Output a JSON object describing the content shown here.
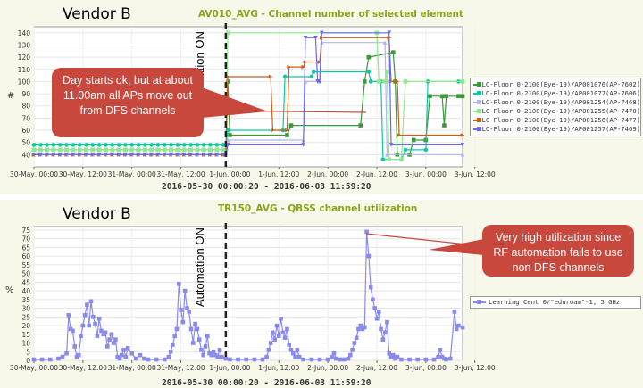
{
  "chart_data": [
    {
      "type": "line",
      "vendor_label": "Vendor B",
      "title": "AV010_AVG - Channel number of selected element",
      "ylabel": "#",
      "ylim": [
        30,
        145
      ],
      "yticks": [
        40,
        50,
        60,
        70,
        80,
        90,
        100,
        110,
        120,
        130,
        140
      ],
      "xticks": [
        "30-May, 00:00",
        "30-May, 12:00",
        "31-May, 00:00",
        "31-May, 12:00",
        "1-Jun, 00:00",
        "1-Jun, 12:00",
        "2-Jun, 00:00",
        "2-Jun, 12:00",
        "3-Jun, 00:00",
        "3-Jun, 12:00"
      ],
      "xlim_hours": [
        0,
        105
      ],
      "time_range": "2016-05-30 00:00:20 - 2016-06-03 11:59:20",
      "annotation_line_label": "Automation ON",
      "annotation_line_x_hours": 47,
      "callout": "Day starts ok, but at about 11.00am all APs move out from DFS channels",
      "series": [
        {
          "name": "LC-Floor 0-2100",
          "ap": "(Eye-19)/AP001076(AP-7602)",
          "color": "#3a9a3a",
          "marker": "square",
          "points": [
            [
              0,
              44
            ],
            [
              47,
              44
            ],
            [
              47.5,
              100
            ],
            [
              48,
              56
            ],
            [
              62,
              56
            ],
            [
              63,
              64
            ],
            [
              80,
              64
            ],
            [
              81,
              100
            ],
            [
              82,
              120
            ],
            [
              88,
              124
            ],
            [
              88.5,
              100
            ],
            [
              89,
              40
            ],
            [
              92,
              40
            ],
            [
              93,
              52
            ],
            [
              96,
              52
            ],
            [
              97,
              88
            ],
            [
              100,
              88
            ],
            [
              100.5,
              64
            ],
            [
              101,
              88
            ],
            [
              104,
              88
            ],
            [
              105,
              88
            ]
          ]
        },
        {
          "name": "LC-Floor 0-2100",
          "ap": "(Eye-19)/AP001077(AP-7606)",
          "color": "#10c8a0",
          "marker": "circle",
          "points": [
            [
              0,
              48
            ],
            [
              47,
              48
            ],
            [
              47.5,
              60
            ],
            [
              61,
              60
            ],
            [
              61.5,
              104
            ],
            [
              68,
              104
            ],
            [
              68.5,
              108
            ],
            [
              82,
              108
            ],
            [
              82.5,
              100
            ],
            [
              85,
              100
            ],
            [
              85.5,
              36
            ],
            [
              90,
              36
            ],
            [
              91,
              44
            ],
            [
              96,
              44
            ],
            [
              96.5,
              100
            ],
            [
              104,
              100
            ],
            [
              105,
              100
            ]
          ]
        },
        {
          "name": "LC-Floor 0-2100",
          "ap": "(Eye-19)/AP001254(AP-7468)",
          "color": "#b4b4e8",
          "marker": "triangle-up",
          "points": [
            [
              0,
              40
            ],
            [
              47,
              40
            ],
            [
              47.5,
              52
            ],
            [
              66,
              52
            ],
            [
              66.5,
              100
            ],
            [
              70,
              100
            ],
            [
              70.5,
              132
            ],
            [
              86,
              132
            ],
            [
              86.5,
              40
            ],
            [
              105,
              40
            ]
          ]
        },
        {
          "name": "LC-Floor 0-2100",
          "ap": "(Eye-19)/AP001255(AP-7470)",
          "color": "#90e890",
          "marker": "square",
          "points": [
            [
              0,
              44
            ],
            [
              47,
              44
            ],
            [
              47.5,
              140
            ],
            [
              84,
              140
            ],
            [
              84.5,
              100
            ],
            [
              86,
              100
            ],
            [
              86.5,
              108
            ],
            [
              87,
              36
            ],
            [
              90,
              36
            ],
            [
              91,
              100
            ],
            [
              105,
              100
            ]
          ]
        },
        {
          "name": "LC-Floor 0-2100",
          "ap": "(Eye-19)/AP001256(AP-7477)",
          "color": "#c86018",
          "marker": "triangle-right",
          "points": [
            [
              0,
              40
            ],
            [
              47,
              40
            ],
            [
              47.5,
              104
            ],
            [
              58,
              104
            ],
            [
              58.5,
              60
            ],
            [
              62,
              60
            ],
            [
              62.5,
              112
            ],
            [
              66,
              112
            ],
            [
              66.5,
              116
            ],
            [
              70,
              116
            ],
            [
              70.5,
              136
            ],
            [
              87,
              136
            ],
            [
              87.5,
              100
            ],
            [
              89,
              100
            ],
            [
              89.5,
              56
            ],
            [
              105,
              56
            ]
          ]
        },
        {
          "name": "LC-Floor 0-2100",
          "ap": "(Eye-19)/AP001257(AP-7469)",
          "color": "#6a6ae8",
          "marker": "triangle-down",
          "points": [
            [
              0,
              40
            ],
            [
              47,
              40
            ],
            [
              47.5,
              48
            ],
            [
              66,
              48
            ],
            [
              66.5,
              136
            ],
            [
              69,
              136
            ],
            [
              69.5,
              100
            ],
            [
              70,
              100
            ],
            [
              70.5,
              140
            ],
            [
              87,
              140
            ],
            [
              87.5,
              48
            ],
            [
              105,
              48
            ]
          ]
        }
      ]
    },
    {
      "type": "line",
      "vendor_label": "Vendor B",
      "title": "TR150_AVG - QBSS channel utilization",
      "ylabel": "%",
      "ylim": [
        0,
        77
      ],
      "yticks": [
        0,
        5,
        10,
        15,
        20,
        25,
        30,
        35,
        40,
        45,
        50,
        55,
        60,
        65,
        70,
        75
      ],
      "xticks": [
        "30-May, 00:00",
        "30-May, 12:00",
        "31-May, 00:00",
        "31-May, 12:00",
        "1-Jun, 00:00",
        "1-Jun, 12:00",
        "2-Jun, 00:00",
        "2-Jun, 12:00",
        "3-Jun, 00:00",
        "3-Jun, 12:00"
      ],
      "xlim_hours": [
        0,
        105
      ],
      "time_range": "2016-05-30 00:00:20 - 2016-06-03 11:59:20",
      "annotation_line_label": "Automation ON",
      "annotation_line_x_hours": 47,
      "callout": "Very high utilization since RF automation fails to use non DFS channels",
      "series": [
        {
          "name": "Learning Cent 0/\"eduroam\"-1, 5 GHz",
          "color": "#8a8aea",
          "marker": "square",
          "points": [
            [
              0,
              0.5
            ],
            [
              2,
              0.5
            ],
            [
              4,
              0.5
            ],
            [
              6,
              1
            ],
            [
              7,
              2
            ],
            [
              8,
              4
            ],
            [
              8.5,
              26
            ],
            [
              9,
              18
            ],
            [
              9.5,
              17
            ],
            [
              10,
              8
            ],
            [
              10.5,
              2
            ],
            [
              11,
              3
            ],
            [
              11.5,
              14
            ],
            [
              12,
              20
            ],
            [
              12.5,
              26
            ],
            [
              13,
              32
            ],
            [
              13.5,
              20
            ],
            [
              14,
              34
            ],
            [
              14.5,
              25
            ],
            [
              15,
              21
            ],
            [
              15.5,
              14
            ],
            [
              16,
              24
            ],
            [
              16.5,
              17
            ],
            [
              17,
              15
            ],
            [
              17.5,
              16
            ],
            [
              18,
              8
            ],
            [
              18.5,
              12
            ],
            [
              19,
              15
            ],
            [
              19.5,
              10
            ],
            [
              20,
              12
            ],
            [
              20.5,
              2
            ],
            [
              21,
              1
            ],
            [
              21.5,
              3
            ],
            [
              22,
              6
            ],
            [
              22.5,
              2
            ],
            [
              23,
              7
            ],
            [
              24,
              4
            ],
            [
              25,
              1
            ],
            [
              26,
              3
            ],
            [
              27,
              1
            ],
            [
              28,
              0.5
            ],
            [
              30,
              0.5
            ],
            [
              32,
              0.5
            ],
            [
              33,
              2
            ],
            [
              33.5,
              5
            ],
            [
              34,
              9
            ],
            [
              34.5,
              14
            ],
            [
              35,
              18
            ],
            [
              35.5,
              44
            ],
            [
              36,
              29
            ],
            [
              36.5,
              22
            ],
            [
              37,
              40
            ],
            [
              37.5,
              30
            ],
            [
              38,
              28
            ],
            [
              38.5,
              18
            ],
            [
              39,
              10
            ],
            [
              39.5,
              21
            ],
            [
              40,
              18
            ],
            [
              40.5,
              12
            ],
            [
              41,
              6
            ],
            [
              41.5,
              3
            ],
            [
              42,
              8
            ],
            [
              42.5,
              14
            ],
            [
              43,
              4
            ],
            [
              43.5,
              3
            ],
            [
              44,
              5
            ],
            [
              44.5,
              3
            ],
            [
              45,
              2
            ],
            [
              45.5,
              6
            ],
            [
              46,
              2
            ],
            [
              47,
              1
            ],
            [
              48,
              0.5
            ],
            [
              50,
              0.5
            ],
            [
              52,
              0.5
            ],
            [
              54,
              0.5
            ],
            [
              56,
              0.5
            ],
            [
              57,
              2
            ],
            [
              57.5,
              6
            ],
            [
              58,
              10
            ],
            [
              58.5,
              16
            ],
            [
              59,
              12
            ],
            [
              59.5,
              20
            ],
            [
              60,
              14
            ],
            [
              60.5,
              24
            ],
            [
              61,
              16
            ],
            [
              61.5,
              13
            ],
            [
              62,
              18
            ],
            [
              62.5,
              9
            ],
            [
              63,
              6
            ],
            [
              63.5,
              4
            ],
            [
              64,
              2
            ],
            [
              64.5,
              6
            ],
            [
              65,
              2
            ],
            [
              66,
              0.5
            ],
            [
              68,
              0.5
            ],
            [
              70,
              0.5
            ],
            [
              72,
              0.5
            ],
            [
              73,
              2
            ],
            [
              73.5,
              4
            ],
            [
              74,
              1
            ],
            [
              75,
              0.5
            ],
            [
              76,
              0.5
            ],
            [
              77,
              1
            ],
            [
              77.5,
              3
            ],
            [
              78,
              6
            ],
            [
              78.5,
              10
            ],
            [
              79,
              13
            ],
            [
              79.5,
              18
            ],
            [
              80,
              20
            ],
            [
              80.5,
              18
            ],
            [
              81,
              19
            ],
            [
              81.5,
              74
            ],
            [
              82,
              60
            ],
            [
              82.5,
              42
            ],
            [
              83,
              35
            ],
            [
              83.5,
              30
            ],
            [
              84,
              24
            ],
            [
              84.5,
              28
            ],
            [
              85,
              18
            ],
            [
              85.5,
              12
            ],
            [
              86,
              16
            ],
            [
              86.5,
              22
            ],
            [
              87,
              4
            ],
            [
              87.5,
              2
            ],
            [
              88,
              3
            ],
            [
              88.5,
              1
            ],
            [
              89,
              2
            ],
            [
              90,
              0.5
            ],
            [
              92,
              0.5
            ],
            [
              94,
              0.5
            ],
            [
              96,
              0.5
            ],
            [
              98,
              0.5
            ],
            [
              99,
              2
            ],
            [
              99.5,
              6
            ],
            [
              100,
              2
            ],
            [
              100.5,
              1
            ],
            [
              101,
              0.5
            ],
            [
              102,
              1
            ],
            [
              103,
              28
            ],
            [
              103.5,
              18
            ],
            [
              104,
              20
            ],
            [
              105,
              19
            ]
          ]
        }
      ]
    }
  ]
}
